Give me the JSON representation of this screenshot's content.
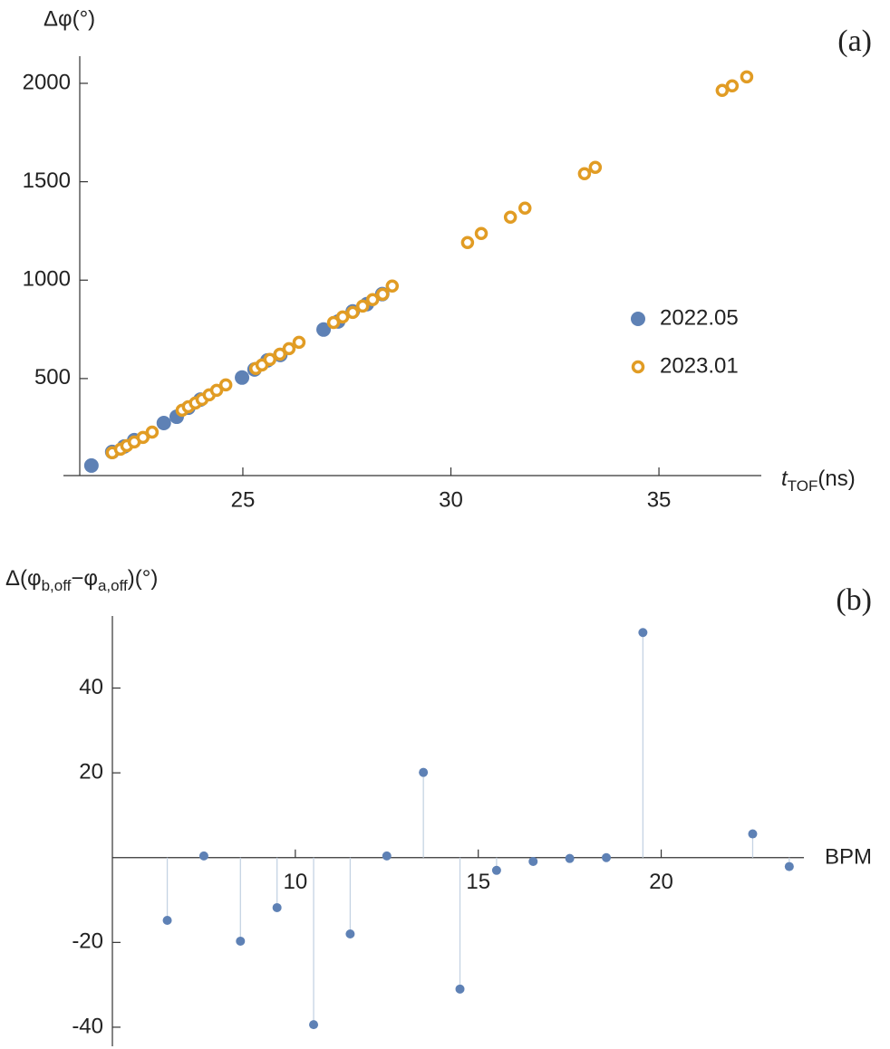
{
  "chart_data": [
    {
      "type": "scatter",
      "panel_label": "(a)",
      "y_label": "Δφ(°)",
      "x_label": "t",
      "x_label_sub": "TOF",
      "x_label_unit": "(ns)",
      "xlim": [
        21.08,
        37.46
      ],
      "xticks": [
        25,
        30,
        35
      ],
      "ylim": [
        7,
        2138
      ],
      "yticks": [
        500,
        1000,
        1500,
        2000
      ],
      "legend": "right",
      "series": [
        {
          "name": "2022.05",
          "color": "#5e81b5",
          "marker": "filled",
          "x": [
            21.36,
            21.86,
            22.15,
            22.39,
            23.1,
            23.41,
            23.69,
            23.98,
            24.98,
            25.28,
            25.59,
            25.9,
            26.94,
            27.29,
            27.64,
            27.98,
            28.35
          ],
          "values": [
            58,
            127,
            155,
            187,
            274,
            306,
            352,
            393,
            505,
            546,
            592,
            620,
            749,
            790,
            841,
            878,
            929
          ]
        },
        {
          "name": "2023.01",
          "color": "#e19c24",
          "marker": "open",
          "x": [
            21.86,
            22.06,
            22.21,
            22.39,
            22.6,
            22.82,
            23.54,
            23.69,
            23.86,
            24.02,
            24.19,
            24.37,
            24.59,
            25.31,
            25.46,
            25.65,
            25.89,
            26.11,
            26.35,
            27.18,
            27.4,
            27.64,
            27.88,
            28.12,
            28.36,
            28.59,
            30.4,
            30.73,
            31.43,
            31.78,
            33.21,
            33.47,
            36.52,
            36.76,
            37.11
          ],
          "values": [
            123,
            141,
            159,
            178,
            201,
            228,
            339,
            357,
            376,
            394,
            417,
            440,
            468,
            551,
            569,
            597,
            624,
            652,
            684,
            785,
            813,
            836,
            868,
            901,
            928,
            970,
            1191,
            1237,
            1320,
            1366,
            1541,
            1573,
            1964,
            1987,
            2033
          ]
        }
      ]
    },
    {
      "type": "stem",
      "panel_label": "(b)",
      "y_label_parts": [
        "Δ(φ",
        "b,off",
        "−φ",
        "a,off",
        ")(°)"
      ],
      "x_label": "BPM",
      "xlim": [
        5,
        23.9
      ],
      "xticks": [
        10,
        15,
        20
      ],
      "ylim": [
        -44.5,
        57
      ],
      "yticks": [
        -40,
        -20,
        20,
        40
      ],
      "color": "#5e81b5",
      "stem_color": "#c5d3e3",
      "x": [
        6.5,
        7.5,
        8.5,
        9.5,
        10.5,
        11.5,
        12.5,
        13.5,
        14.5,
        15.5,
        16.5,
        17.5,
        18.5,
        19.5,
        22.5,
        23.5
      ],
      "values": [
        -14.8,
        0.4,
        -19.7,
        -11.8,
        -39.4,
        -18.0,
        0.4,
        20.1,
        -31.0,
        -3.0,
        -0.9,
        -0.2,
        0,
        53.1,
        5.6,
        -2.1
      ]
    }
  ]
}
